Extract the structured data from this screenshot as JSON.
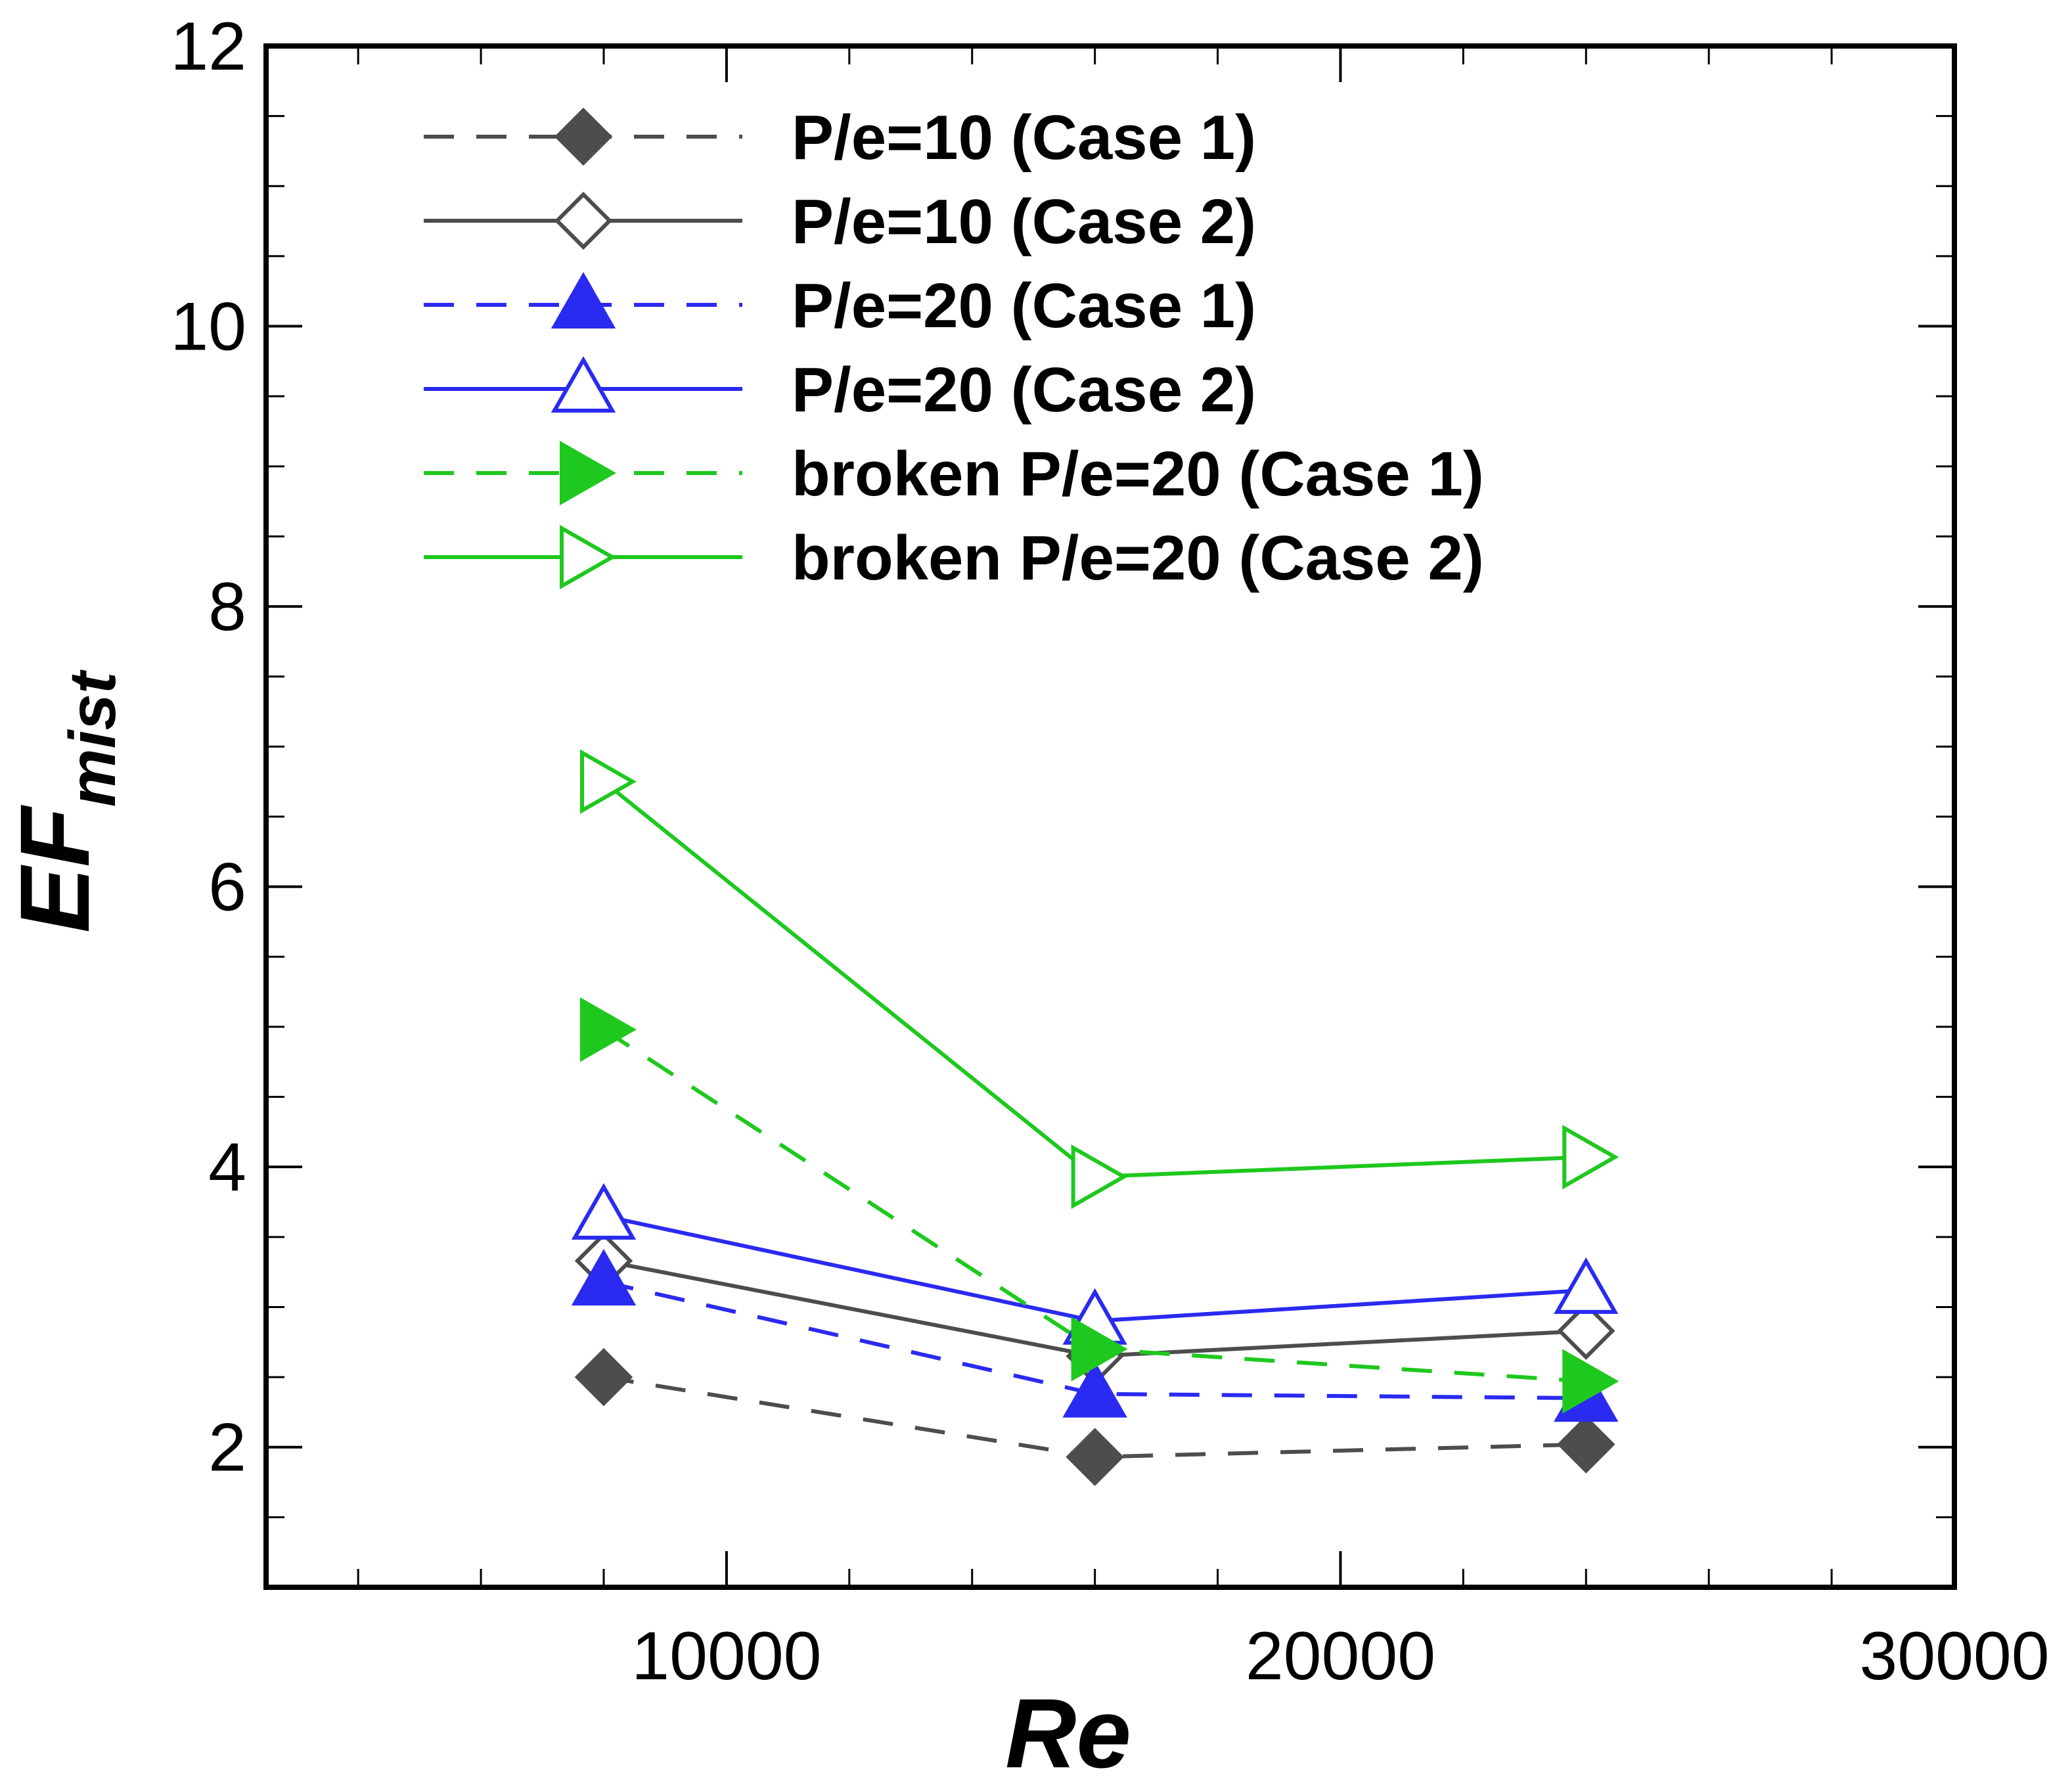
{
  "chart_data": {
    "type": "line",
    "title": "",
    "xlabel": "Re",
    "ylabel_main": "EF",
    "ylabel_sub": "mist",
    "xlim": [
      2500,
      30000
    ],
    "ylim": [
      1,
      12
    ],
    "x_ticks": [
      10000,
      20000,
      30000
    ],
    "x_tick_labels": [
      "10000",
      "20000",
      "30000"
    ],
    "x_minor_step": 2000,
    "y_ticks": [
      2,
      4,
      6,
      8,
      10,
      12
    ],
    "y_tick_labels": [
      "2",
      "4",
      "6",
      "8",
      "10",
      "12"
    ],
    "y_minor_step": 0.5,
    "grid": false,
    "legend_position": "top-left",
    "x": [
      8000,
      16000,
      24000
    ],
    "series": [
      {
        "name": "P/e=10 (Case 1)",
        "values": [
          2.5,
          1.93,
          2.02
        ],
        "color": "#4d4d4d",
        "dash": "dashed",
        "marker": "diamond",
        "filled": true
      },
      {
        "name": "P/e=10 (Case 2)",
        "values": [
          3.33,
          2.65,
          2.83
        ],
        "color": "#4d4d4d",
        "dash": "solid",
        "marker": "diamond",
        "filled": false
      },
      {
        "name": "P/e=20 (Case 1)",
        "values": [
          3.18,
          2.38,
          2.35
        ],
        "color": "#2a2af0",
        "dash": "dashed",
        "marker": "triangle-up",
        "filled": true
      },
      {
        "name": "P/e=20 (Case 2)",
        "values": [
          3.65,
          2.9,
          3.12
        ],
        "color": "#2a2af0",
        "dash": "solid",
        "marker": "triangle-up",
        "filled": false
      },
      {
        "name": "broken P/e=20 (Case 1)",
        "values": [
          4.98,
          2.7,
          2.47
        ],
        "color": "#1ec81e",
        "dash": "dashed",
        "marker": "triangle-right",
        "filled": true
      },
      {
        "name": "broken P/e=20 (Case 2)",
        "values": [
          6.75,
          3.93,
          4.07
        ],
        "color": "#1ec81e",
        "dash": "solid",
        "marker": "triangle-right",
        "filled": false
      }
    ]
  }
}
